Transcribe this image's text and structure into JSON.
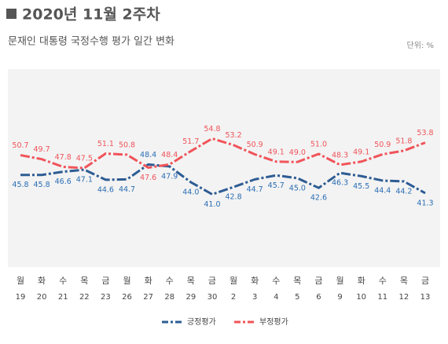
{
  "chart_data": {
    "type": "line",
    "title": "2020년 11월 2주차",
    "subtitle": "문재인 대통령 국정수행 평가 일간 변화",
    "unit": "단위: %",
    "weekdays": [
      "월",
      "화",
      "수",
      "목",
      "금",
      "월",
      "화",
      "수",
      "목",
      "금",
      "월",
      "화",
      "수",
      "목",
      "금",
      "월",
      "화",
      "수",
      "목",
      "금"
    ],
    "categories": [
      "19",
      "20",
      "21",
      "22",
      "23",
      "26",
      "27",
      "28",
      "29",
      "30",
      "2",
      "3",
      "4",
      "5",
      "6",
      "9",
      "10",
      "11",
      "12",
      "13"
    ],
    "ylim": [
      23,
      72
    ],
    "series": [
      {
        "name": "긍정평가",
        "color": "#2d5c93",
        "label_color": "#2a6db3",
        "values": [
          45.8,
          45.8,
          46.6,
          47.1,
          44.6,
          44.7,
          48.4,
          47.9,
          44.0,
          41.0,
          42.8,
          44.7,
          45.7,
          45.0,
          42.6,
          46.3,
          45.5,
          44.4,
          44.2,
          41.3
        ],
        "value_labels": [
          "45.8",
          "45.8",
          "46.6",
          "47.1",
          "44.6",
          "44.7",
          "48.4",
          "47.9",
          "44.0",
          "41.0",
          "42.8",
          "44.7",
          "45.7",
          "45.0",
          "42.6",
          "46.3",
          "45.5",
          "44.4",
          "44.2",
          "41.3"
        ]
      },
      {
        "name": "부정평가",
        "color": "#f0545a",
        "label_color": "#f0545a",
        "values": [
          50.7,
          49.7,
          47.8,
          47.5,
          51.1,
          50.8,
          47.6,
          48.4,
          51.7,
          54.8,
          53.2,
          50.9,
          49.1,
          49.0,
          51.0,
          48.3,
          49.1,
          50.9,
          51.8,
          53.8
        ],
        "value_labels": [
          "50.7",
          "49.7",
          "47.8",
          "47.5",
          "51.1",
          "50.8",
          "47.6",
          "48.4",
          "51.7",
          "54.8",
          "53.2",
          "50.9",
          "49.1",
          "49.0",
          "51.0",
          "48.3",
          "49.1",
          "50.9",
          "51.8",
          "53.8"
        ]
      }
    ]
  }
}
